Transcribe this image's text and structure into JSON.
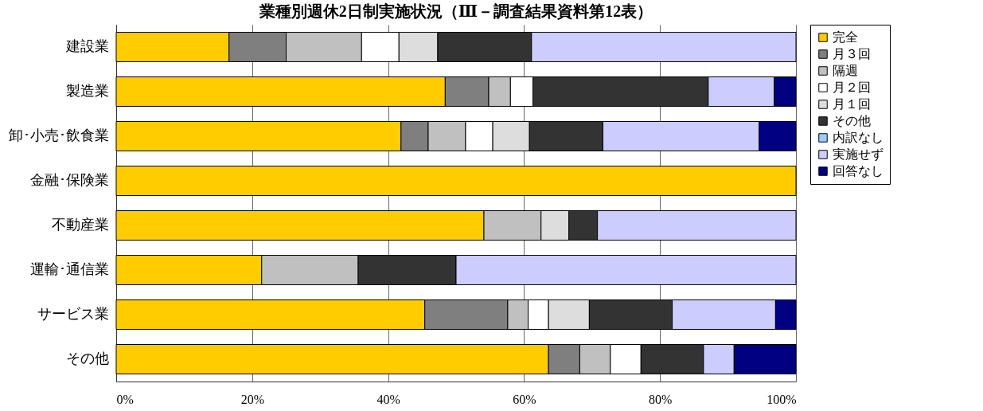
{
  "chart_data": {
    "type": "bar",
    "orientation": "horizontal",
    "stacked": true,
    "title": "業種別週休2日制実施状況（Ⅲ－調査結果資料第12表）",
    "categories": [
      "建設業",
      "製造業",
      "卸･小売･飲食業",
      "金融･保険業",
      "不動産業",
      "運輸･通信業",
      "サービス業",
      "その他"
    ],
    "series": [
      {
        "name": "完全",
        "color": "#ffcc00",
        "values": [
          16.6,
          48.4,
          41.9,
          100,
          54.1,
          21.4,
          45.4,
          63.6
        ]
      },
      {
        "name": "月３回",
        "color": "#7f7f7f",
        "values": [
          8.4,
          6.4,
          4.0,
          0,
          0,
          0,
          12.2,
          4.6
        ]
      },
      {
        "name": "隔週",
        "color": "#c0c0c0",
        "values": [
          11.1,
          3.2,
          5.5,
          0,
          8.4,
          14.2,
          3.0,
          4.5
        ]
      },
      {
        "name": "月２回",
        "color": "#ffffff",
        "values": [
          5.5,
          3.3,
          4.0,
          0,
          0,
          0,
          3.0,
          4.5
        ]
      },
      {
        "name": "月１回",
        "color": "#dddddd",
        "values": [
          5.7,
          0,
          5.4,
          0,
          4.1,
          0,
          6.0,
          0
        ]
      },
      {
        "name": "その他",
        "color": "#333333",
        "values": [
          13.8,
          25.8,
          10.8,
          0,
          4.2,
          14.4,
          12.2,
          9.2
        ]
      },
      {
        "name": "内訳なし",
        "color": "#99ccff",
        "values": [
          0,
          0,
          0,
          0,
          0,
          0,
          0,
          0
        ]
      },
      {
        "name": "実施せず",
        "color": "#ccccff",
        "values": [
          38.9,
          9.7,
          23.0,
          0,
          29.2,
          50.0,
          15.2,
          4.5
        ]
      },
      {
        "name": "回答なし",
        "color": "#000080",
        "values": [
          0,
          3.2,
          5.4,
          0,
          0,
          0,
          3.0,
          9.1
        ]
      }
    ],
    "xlim": [
      0,
      100
    ],
    "xticks": [
      {
        "value": 0,
        "label": "0%"
      },
      {
        "value": 20,
        "label": "20%"
      },
      {
        "value": 40,
        "label": "40%"
      },
      {
        "value": 60,
        "label": "60%"
      },
      {
        "value": 80,
        "label": "80%"
      },
      {
        "value": 100,
        "label": "100%"
      }
    ],
    "grid": "x",
    "legend": "top right"
  }
}
